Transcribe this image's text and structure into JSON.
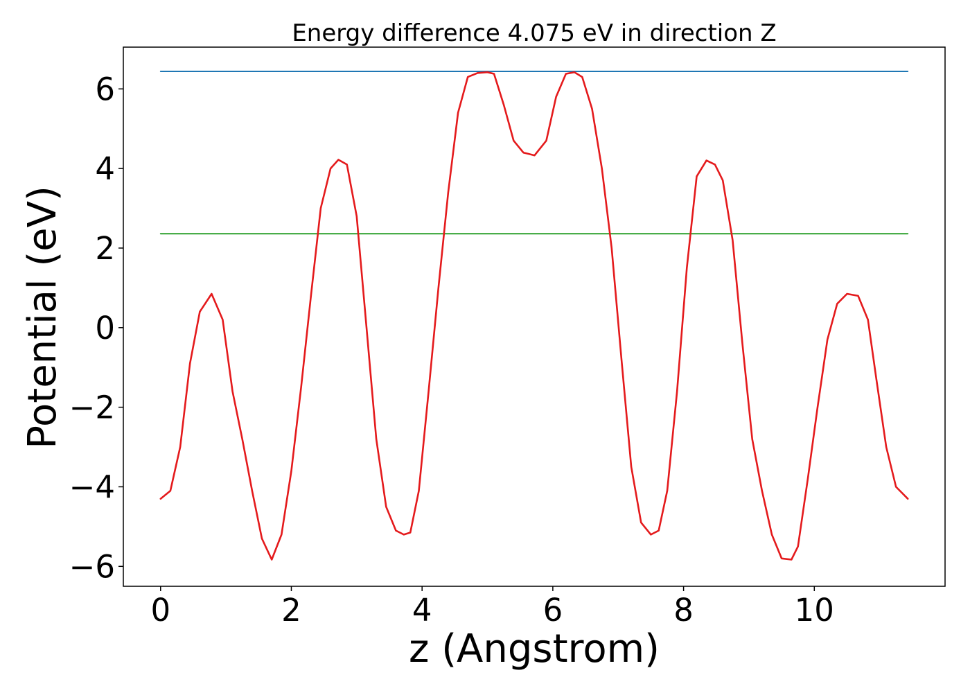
{
  "chart_data": {
    "type": "line",
    "title": "Energy difference 4.075 eV in direction Z",
    "xlabel": "z (Angstrom)",
    "ylabel": "Potential (eV)",
    "xlim": [
      -0.57,
      12.0
    ],
    "ylim": [
      -6.5,
      7.05
    ],
    "xticks": [
      0,
      2,
      4,
      6,
      8,
      10
    ],
    "yticks": [
      -6,
      -4,
      -2,
      0,
      2,
      4,
      6
    ],
    "xtick_labels": [
      "0",
      "2",
      "4",
      "6",
      "8",
      "10"
    ],
    "ytick_labels": [
      "−6",
      "−4",
      "−2",
      "0",
      "2",
      "4",
      "6"
    ],
    "grid": false,
    "series": [
      {
        "color": "#1f77b4",
        "x": [
          0.0,
          11.43
        ],
        "y": [
          6.44,
          6.44
        ]
      },
      {
        "color": "#2ca02c",
        "x": [
          0.0,
          11.43
        ],
        "y": [
          2.36,
          2.36
        ]
      },
      {
        "color": "#e41a1c",
        "x": [
          0.0,
          0.15,
          0.3,
          0.45,
          0.6,
          0.78,
          0.95,
          1.1,
          1.25,
          1.4,
          1.55,
          1.7,
          1.85,
          2.0,
          2.15,
          2.3,
          2.45,
          2.6,
          2.72,
          2.85,
          3.0,
          3.15,
          3.3,
          3.45,
          3.6,
          3.72,
          3.82,
          3.95,
          4.1,
          4.25,
          4.4,
          4.55,
          4.7,
          4.85,
          5.0,
          5.1,
          5.25,
          5.4,
          5.55,
          5.72,
          5.9,
          6.05,
          6.2,
          6.33,
          6.45,
          6.6,
          6.75,
          6.9,
          7.05,
          7.2,
          7.35,
          7.5,
          7.62,
          7.75,
          7.9,
          8.05,
          8.2,
          8.35,
          8.48,
          8.6,
          8.75,
          8.9,
          9.05,
          9.2,
          9.35,
          9.5,
          9.65,
          9.75,
          9.9,
          10.05,
          10.2,
          10.35,
          10.5,
          10.67,
          10.82,
          10.95,
          11.1,
          11.25,
          11.43
        ],
        "y": [
          -4.3,
          -4.1,
          -3.0,
          -0.9,
          0.4,
          0.85,
          0.2,
          -1.6,
          -2.8,
          -4.1,
          -5.3,
          -5.83,
          -5.2,
          -3.6,
          -1.5,
          0.8,
          3.0,
          4.0,
          4.22,
          4.1,
          2.8,
          0.0,
          -2.8,
          -4.5,
          -5.1,
          -5.2,
          -5.15,
          -4.1,
          -1.6,
          1.0,
          3.4,
          5.4,
          6.3,
          6.4,
          6.42,
          6.38,
          5.6,
          4.7,
          4.4,
          4.33,
          4.7,
          5.8,
          6.38,
          6.42,
          6.3,
          5.5,
          4.0,
          2.0,
          -0.8,
          -3.5,
          -4.9,
          -5.2,
          -5.1,
          -4.1,
          -1.6,
          1.5,
          3.8,
          4.2,
          4.1,
          3.7,
          2.2,
          -0.4,
          -2.8,
          -4.1,
          -5.2,
          -5.8,
          -5.83,
          -5.5,
          -3.8,
          -2.0,
          -0.3,
          0.6,
          0.85,
          0.8,
          0.2,
          -1.3,
          -3.0,
          -4.0,
          -4.3
        ]
      }
    ]
  }
}
